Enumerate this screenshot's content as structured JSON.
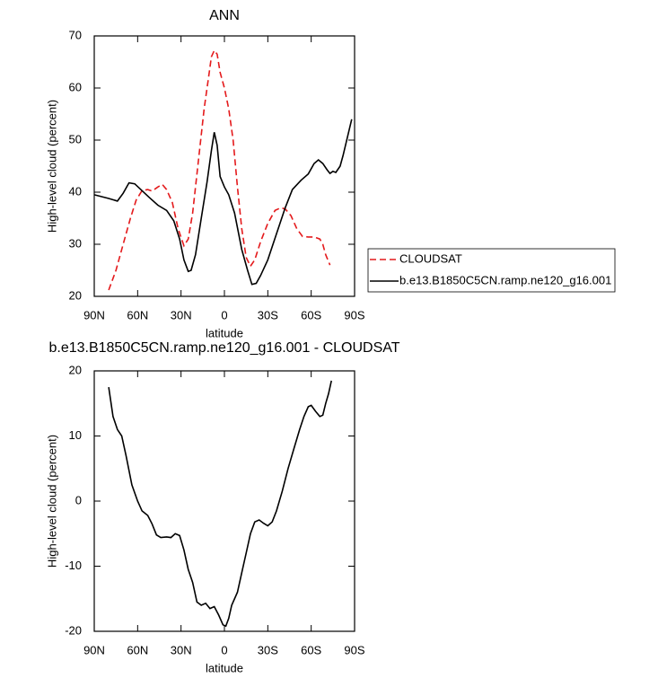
{
  "chart_data": [
    {
      "type": "line",
      "title": "ANN",
      "xlabel": "latitude",
      "ylabel": "High-level cloud (percent)",
      "xlim": [
        90,
        -90
      ],
      "ylim": [
        20,
        70
      ],
      "xticks": [
        {
          "value": 90,
          "label": "90N"
        },
        {
          "value": 60,
          "label": "60N"
        },
        {
          "value": 30,
          "label": "30N"
        },
        0,
        {
          "value": -30,
          "label": "30S"
        },
        {
          "value": -60,
          "label": "60S"
        },
        {
          "value": -90,
          "label": "90S"
        }
      ],
      "yticks": [
        20,
        30,
        40,
        50,
        60,
        70
      ],
      "legend": "right",
      "series": [
        {
          "name": "CLOUDSAT",
          "color": "#e41a1c",
          "dashed": true,
          "x": [
            80,
            75,
            70,
            65,
            61,
            57,
            53,
            50,
            46,
            43,
            40,
            36,
            32,
            28,
            25,
            22,
            18,
            14,
            11,
            9,
            7,
            5,
            3,
            0,
            -3,
            -6,
            -9,
            -12,
            -15,
            -18,
            -21,
            -25,
            -30,
            -35,
            -39,
            -42,
            -46,
            -50,
            -54,
            -58,
            -62,
            -66,
            -68,
            -70,
            -73
          ],
          "values": [
            21.2,
            25,
            30,
            35,
            38.5,
            40.3,
            40.5,
            40.2,
            41,
            41.5,
            40.5,
            38,
            33,
            29.7,
            31,
            36,
            46,
            56,
            62,
            66,
            67.2,
            66.5,
            63,
            60,
            56,
            50,
            41,
            33,
            27.5,
            25.8,
            27,
            30.5,
            34,
            36.5,
            37,
            36.8,
            35.5,
            33,
            31.5,
            31.4,
            31.4,
            31,
            30,
            28,
            26
          ]
        },
        {
          "name": "b.e13.B1850C5CN.ramp.ne120_g16.001",
          "color": "#000000",
          "dashed": false,
          "x": [
            90,
            80,
            74,
            70,
            66,
            62,
            57,
            52,
            46,
            40,
            35,
            31,
            28,
            25,
            23,
            20,
            16,
            12,
            9,
            7,
            5,
            3,
            0,
            -3,
            -7,
            -12,
            -16,
            -19,
            -22,
            -25,
            -30,
            -36,
            -42,
            -47,
            -53,
            -58,
            -62,
            -65,
            -68,
            -71,
            -73,
            -75,
            -77,
            -80,
            -82,
            -88
          ],
          "values": [
            39.5,
            38.8,
            38.3,
            39.8,
            41.8,
            41.6,
            40.3,
            39,
            37.5,
            36.5,
            34.5,
            31,
            27,
            24.8,
            25,
            28,
            35,
            42,
            48,
            51.5,
            49,
            43,
            41,
            39.5,
            36,
            29,
            25,
            22.3,
            22.5,
            24,
            27,
            32,
            37,
            40.5,
            42.3,
            43.5,
            45.5,
            46.2,
            45.5,
            44.3,
            43.6,
            44,
            43.8,
            45,
            47,
            54
          ]
        }
      ]
    },
    {
      "type": "line",
      "title": "b.e13.B1850C5CN.ramp.ne120_g16.001 - CLOUDSAT",
      "xlabel": "latitude",
      "ylabel": "High-level cloud (percent)",
      "xlim": [
        90,
        -90
      ],
      "ylim": [
        -20,
        20
      ],
      "xticks": [
        {
          "value": 90,
          "label": "90N"
        },
        {
          "value": 60,
          "label": "60N"
        },
        {
          "value": 30,
          "label": "30N"
        },
        0,
        {
          "value": -30,
          "label": "30S"
        },
        {
          "value": -60,
          "label": "60S"
        },
        {
          "value": -90,
          "label": "90S"
        }
      ],
      "yticks": [
        -20,
        -10,
        0,
        10,
        20
      ],
      "color": "#000000",
      "x": [
        80,
        77,
        74,
        71,
        68,
        64,
        60,
        57,
        53,
        50,
        47,
        44,
        40,
        37,
        34,
        31,
        28,
        25,
        22,
        19,
        16,
        13,
        10,
        7,
        4,
        1,
        -1,
        -3,
        -5,
        -9,
        -12,
        -15,
        -18,
        -21,
        -24,
        -27,
        -30,
        -33,
        -36,
        -40,
        -44,
        -48,
        -52,
        -55,
        -58,
        -60,
        -63,
        -66,
        -68,
        -70,
        -72,
        -74
      ],
      "values": [
        17.5,
        13,
        11,
        10,
        7,
        2.5,
        0,
        -1.5,
        -2.2,
        -3.5,
        -5.2,
        -5.6,
        -5.5,
        -5.6,
        -5,
        -5.3,
        -7.5,
        -10.5,
        -12.5,
        -15.5,
        -16,
        -15.7,
        -16.5,
        -16.2,
        -17.5,
        -19,
        -19.2,
        -18,
        -16,
        -14,
        -11,
        -8,
        -5,
        -3.2,
        -2.9,
        -3.4,
        -3.8,
        -3.2,
        -1.5,
        1.5,
        5,
        8,
        11,
        13,
        14.5,
        14.7,
        13.8,
        13,
        13.2,
        15,
        16.5,
        18.5
      ]
    }
  ]
}
